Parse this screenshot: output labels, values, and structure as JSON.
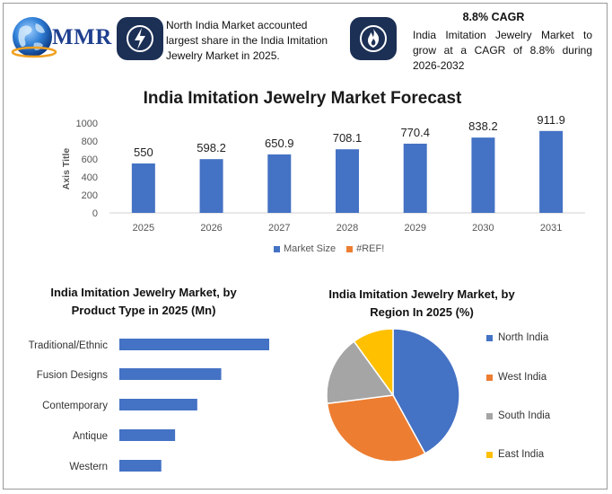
{
  "brand": {
    "logo_text": "MMR"
  },
  "highlights": {
    "share_text": "North India Market accounted largest share in the India Imitation Jewelry Market in 2025.",
    "cagr_title": "8.8% CAGR",
    "cagr_text": "India Imitation Jewelry Market to grow at a CAGR of 8.8% during 2026-2032"
  },
  "colors": {
    "blue": "#4472c4",
    "orange": "#ed7d31",
    "gray": "#a5a5a5",
    "yellow": "#ffc000",
    "dark_box": "#1c2f55"
  },
  "icons": {
    "left": "lightning-icon",
    "right": "flame-icon",
    "logo": "globe-icon"
  },
  "chart_data": [
    {
      "type": "bar",
      "title": "India Imitation Jewelry Market Forecast",
      "ylabel": "Axis Title",
      "categories": [
        "2025",
        "2026",
        "2027",
        "2028",
        "2029",
        "2030",
        "2031"
      ],
      "series": [
        {
          "name": "Market Size",
          "values": [
            550,
            598.2,
            650.9,
            708.1,
            770.4,
            838.2,
            911.9
          ]
        }
      ],
      "data_labels": [
        "550",
        "598.2",
        "650.9",
        "708.1",
        "770.4",
        "838.2",
        "911.9"
      ],
      "ylim": [
        0,
        1000
      ],
      "yticks": [
        "0",
        "200",
        "400",
        "600",
        "800",
        "1000"
      ],
      "legend": [
        "Market Size",
        "#REF!"
      ],
      "legend_position": "bottom",
      "grid": false
    },
    {
      "type": "bar",
      "orientation": "horizontal",
      "title": "India Imitation Jewelry Market, by Product Type in 2025 (Mn)",
      "categories": [
        "Traditional/Ethnic",
        "Fusion Designs",
        "Contemporary",
        "Antique",
        "Western"
      ],
      "values": [
        250,
        170,
        130,
        93,
        70
      ],
      "grid": false
    },
    {
      "type": "pie",
      "title": "India Imitation Jewelry Market, by Region In 2025 (%)",
      "categories": [
        "North India",
        "West India",
        "South India",
        "East India"
      ],
      "values": [
        42,
        31,
        17,
        10
      ],
      "legend_position": "right"
    }
  ]
}
